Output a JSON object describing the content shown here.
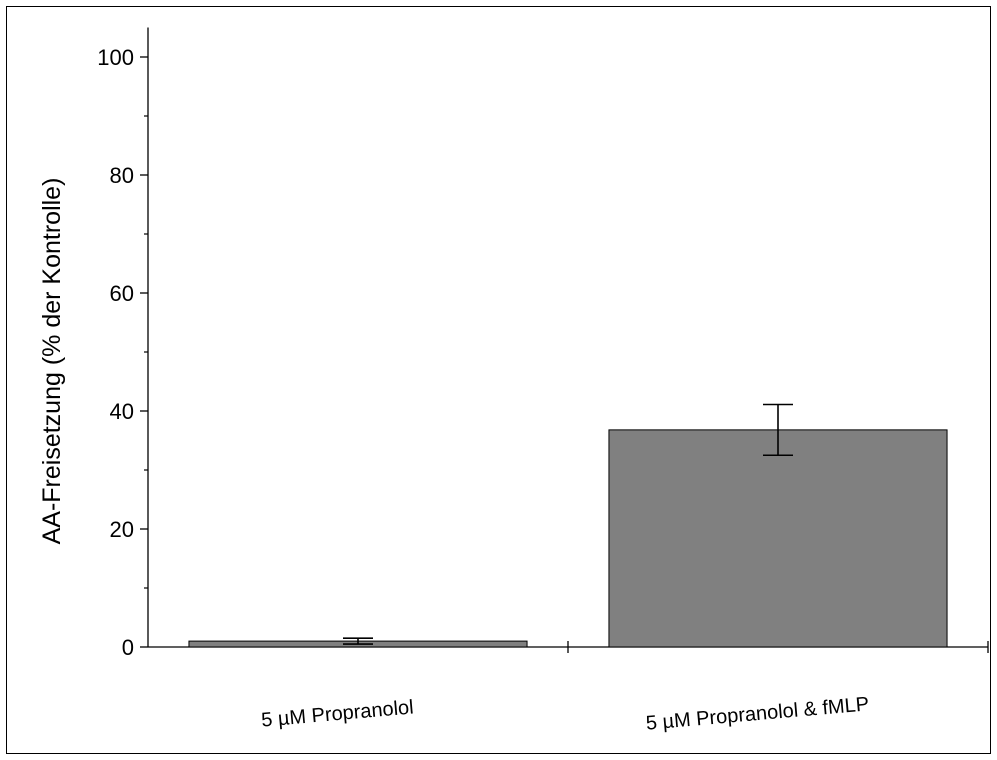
{
  "chart_data": {
    "type": "bar",
    "title": "",
    "xlabel": "",
    "ylabel": "AA-Freisetzung (% der Kontrolle)",
    "categories": [
      "5 µM Propranolol",
      "5 µM Propranolol & fMLP"
    ],
    "values": [
      1.0,
      36.8
    ],
    "errors": [
      0.5,
      4.3
    ],
    "ylim": [
      0,
      105
    ],
    "yticks": [
      0,
      20,
      40,
      60,
      80,
      100
    ],
    "bar_color": "#808080",
    "grid": false
  }
}
